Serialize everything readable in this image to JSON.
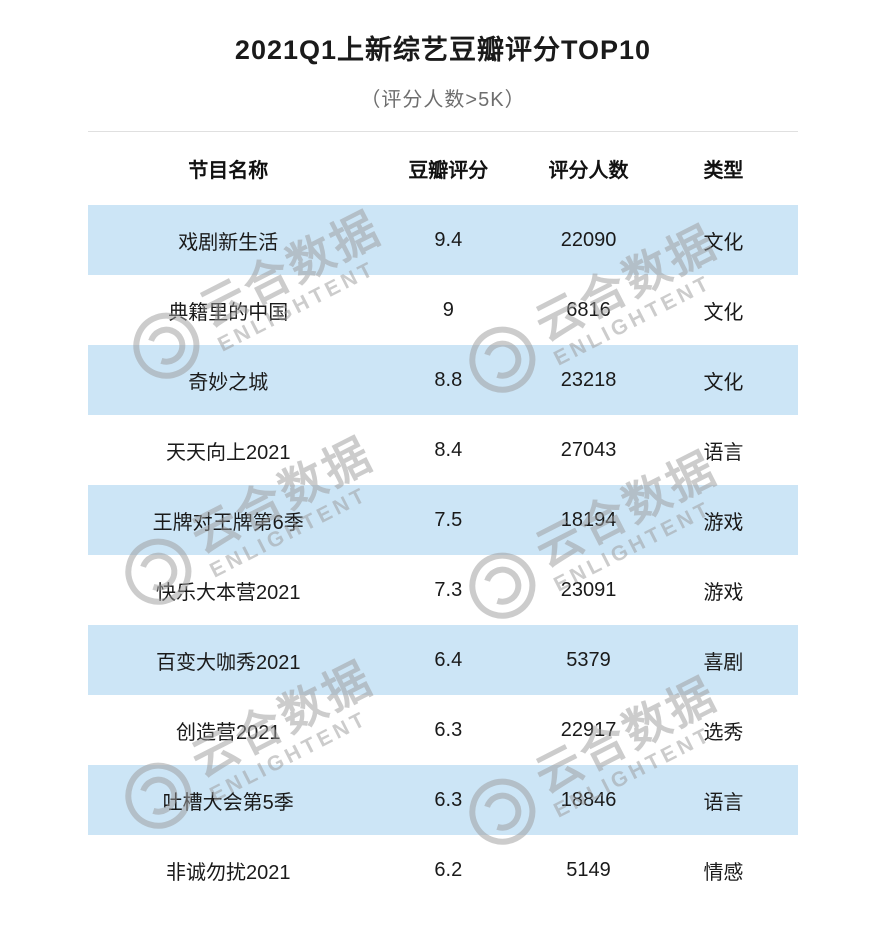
{
  "header": {
    "title": "2021Q1上新综艺豆瓣评分TOP10",
    "subtitle": "（评分人数>5K）"
  },
  "chart_data": {
    "type": "table",
    "title": "2021Q1上新综艺豆瓣评分TOP10",
    "subtitle": "（评分人数>5K）",
    "columns": [
      "节目名称",
      "豆瓣评分",
      "评分人数",
      "类型"
    ],
    "rows": [
      [
        "戏剧新生活",
        9.4,
        22090,
        "文化"
      ],
      [
        "典籍里的中国",
        9,
        6816,
        "文化"
      ],
      [
        "奇妙之城",
        8.8,
        23218,
        "文化"
      ],
      [
        "天天向上2021",
        8.4,
        27043,
        "语言"
      ],
      [
        "王牌对王牌第6季",
        7.5,
        18194,
        "游戏"
      ],
      [
        "快乐大本营2021",
        7.3,
        23091,
        "游戏"
      ],
      [
        "百变大咖秀2021",
        6.4,
        5379,
        "喜剧"
      ],
      [
        "创造营2021",
        6.3,
        22917,
        "选秀"
      ],
      [
        "吐槽大会第5季",
        6.3,
        18846,
        "语言"
      ],
      [
        "非诚勿扰2021",
        6.2,
        5149,
        "情感"
      ]
    ],
    "layout_hints": {
      "row_striping": "odd rows highlighted",
      "alignment": "center"
    }
  },
  "watermark": {
    "brand": "云合数据",
    "brand_en": "ENLIGHTENT",
    "logo": "concentric-circle-icon"
  },
  "colors": {
    "row_highlight": "#cce5f6",
    "title_text": "#1a1a1a",
    "subtitle_text": "#6e6e6e",
    "watermark": "#9b9b9b"
  }
}
